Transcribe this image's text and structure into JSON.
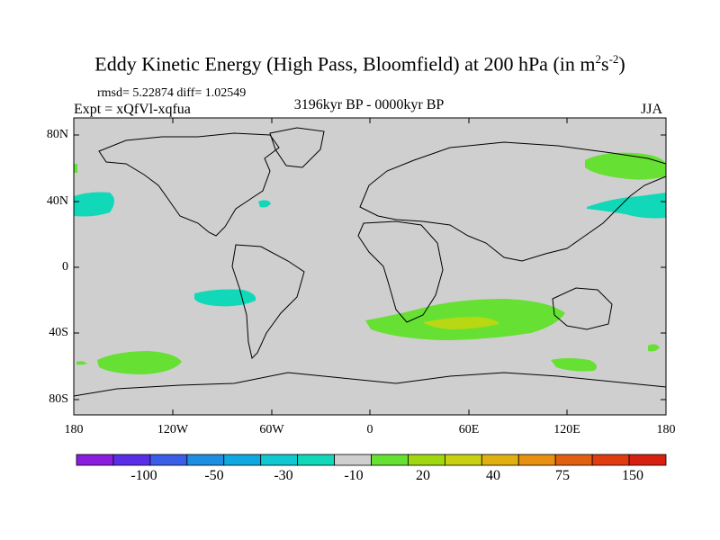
{
  "title": {
    "main": "Eddy Kinetic Energy (High Pass, Bloomfield) at 200 hPa (in m",
    "sup1": "2",
    "mid": "s",
    "sup2": "-2",
    "end": ")"
  },
  "stats": "rmsd= 5.22874 diff= 1.02549",
  "experiment": "Expt = xQfVl-xqfua",
  "period": "3196kyr BP - 0000kyr BP",
  "season": "JJA",
  "lat_labels": [
    "80N",
    "40N",
    "0",
    "40S",
    "80S"
  ],
  "lon_labels": [
    "180",
    "120W",
    "60W",
    "0",
    "60E",
    "120E",
    "180"
  ],
  "colorbar": {
    "labels": [
      "-100",
      "-50",
      "-30",
      "-10",
      "20",
      "40",
      "75",
      "150"
    ],
    "colors": [
      "#8a1ee0",
      "#5a2ee8",
      "#3a5ee8",
      "#1e8ee0",
      "#10a8e0",
      "#10c8d0",
      "#10d8b8",
      "#cfcfcf",
      "#66e033",
      "#a0d810",
      "#c8d010",
      "#e0b010",
      "#e89010",
      "#e06010",
      "#e03c10",
      "#d82010"
    ]
  },
  "map_colors": {
    "ocean": "#cfcfcf",
    "positive_low": "#66e033",
    "positive_mid": "#b7d813",
    "negative_low": "#10d8b8"
  }
}
